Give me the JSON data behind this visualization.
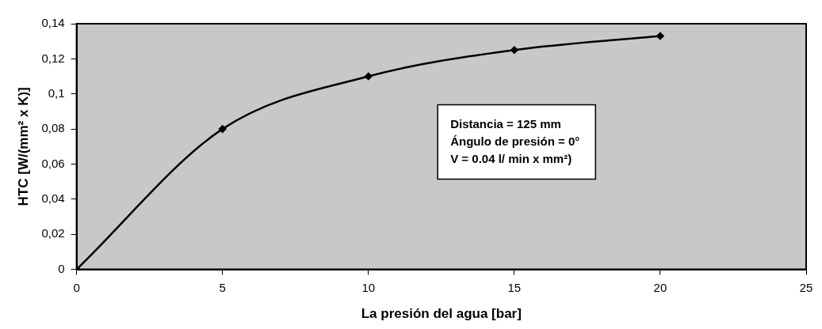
{
  "chart_data": {
    "type": "line",
    "xlabel": "La presión del agua [bar]",
    "ylabel": "HTC [W/(mm² x K)]",
    "x": [
      0,
      5,
      10,
      15,
      20
    ],
    "series": [
      {
        "color": "#000000",
        "values": [
          0,
          0.08,
          0.11,
          0.125,
          0.133
        ]
      }
    ],
    "xlim": [
      0,
      25
    ],
    "xticks": [
      0,
      5,
      10,
      15,
      20,
      25
    ],
    "ylim": [
      0,
      0.14
    ],
    "yticks": [
      {
        "value": 0,
        "label": "0"
      },
      {
        "value": 0.02,
        "label": "0,02"
      },
      {
        "value": 0.04,
        "label": "0,04"
      },
      {
        "value": 0.06,
        "label": "0,06"
      },
      {
        "value": 0.08,
        "label": "0,08"
      },
      {
        "value": 0.1,
        "label": "0,1"
      },
      {
        "value": 0.12,
        "label": "0,12"
      },
      {
        "value": 0.14,
        "label": "0,14"
      }
    ],
    "grid": false,
    "legend": false,
    "marker": "diamond",
    "line_style": "solid",
    "annotations": [
      "Distancia = 125 mm",
      "Ángulo de presión = 0°",
      "V = 0.04 l/ min x mm²)"
    ]
  }
}
